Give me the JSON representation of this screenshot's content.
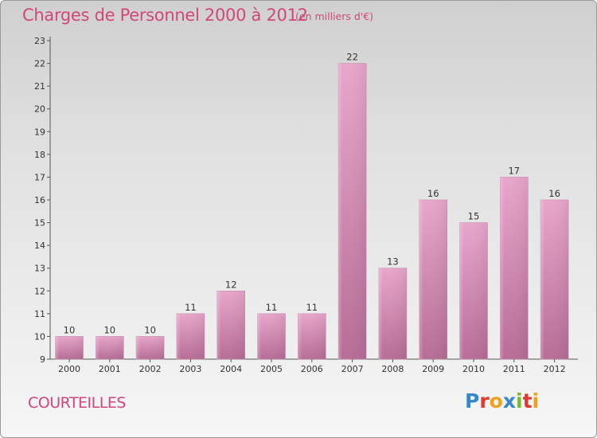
{
  "header": {
    "title": "Charges de Personnel 2000 à 2012",
    "subtitle": "(en milliers d'€)"
  },
  "commune": "COURTEILLES",
  "logo": {
    "text": "Proxiti",
    "letters": [
      {
        "char": "P",
        "color": "#3a86c8"
      },
      {
        "char": "r",
        "color": "#e2372e"
      },
      {
        "char": "o",
        "color": "#f0a020"
      },
      {
        "char": "x",
        "color": "#3a86c8"
      },
      {
        "char": "i",
        "color": "#7cb82f"
      },
      {
        "char": "t",
        "color": "#e2372e"
      },
      {
        "char": "i",
        "color": "#f0a020"
      }
    ]
  },
  "colors": {
    "accent": "#d1477b",
    "bar_top": "#e8a6cb",
    "bar_bottom": "#b76d96"
  },
  "chart_data": {
    "type": "bar",
    "categories": [
      "2000",
      "2001",
      "2002",
      "2003",
      "2004",
      "2005",
      "2006",
      "2007",
      "2008",
      "2009",
      "2010",
      "2011",
      "2012"
    ],
    "values": [
      10,
      10,
      10,
      11,
      12,
      11,
      11,
      22,
      13,
      16,
      15,
      17,
      16
    ],
    "title": "Charges de Personnel 2000 à 2012",
    "subtitle": "(en milliers d'€)",
    "xlabel": "",
    "ylabel": "",
    "ylim": [
      9,
      23
    ],
    "yticks": [
      9,
      10,
      11,
      12,
      13,
      14,
      15,
      16,
      17,
      18,
      19,
      20,
      21,
      22,
      23
    ],
    "grid": false,
    "legend": "none"
  }
}
